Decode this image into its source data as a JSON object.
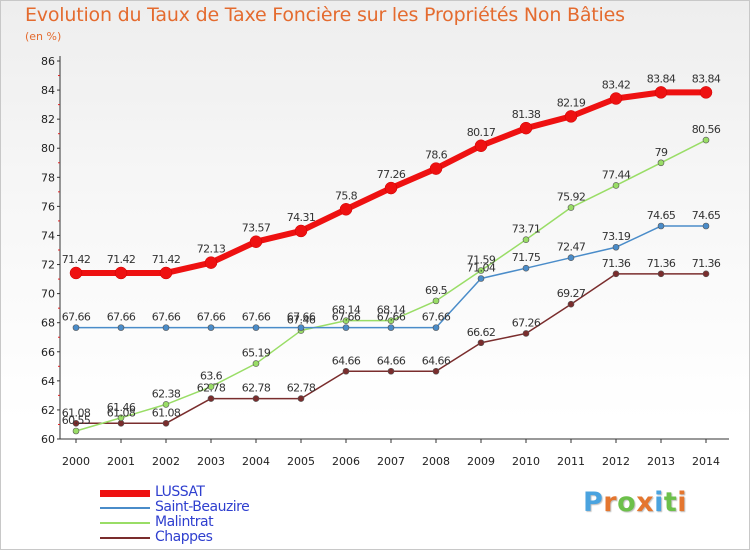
{
  "chart_data": {
    "type": "line",
    "title": "Evolution du Taux de Taxe Foncière sur les Propriétés Non Bâties",
    "ylabel": "(en %)",
    "xlabel": "",
    "x": [
      "2000",
      "2001",
      "2002",
      "2003",
      "2004",
      "2005",
      "2006",
      "2007",
      "2008",
      "2009",
      "2010",
      "2011",
      "2012",
      "2013",
      "2014"
    ],
    "ylim": [
      60,
      86
    ],
    "yticks": [
      "60",
      "62",
      "64",
      "66",
      "68",
      "70",
      "72",
      "74",
      "76",
      "78",
      "80",
      "82",
      "84",
      "86"
    ],
    "grid": false,
    "legend_position": "bottom-left",
    "series": [
      {
        "name": "LUSSAT",
        "color": "#ee1111",
        "values": [
          71.42,
          71.42,
          71.42,
          72.13,
          73.57,
          74.31,
          75.8,
          77.26,
          78.6,
          80.17,
          81.38,
          82.19,
          83.42,
          83.84,
          83.84
        ],
        "labels": [
          "71.42",
          "71.42",
          "71.42",
          "72.13",
          "73.57",
          "74.31",
          "75.8",
          "77.26",
          "78.6",
          "80.17",
          "81.38",
          "82.19",
          "83.42",
          "83.84",
          "83.84"
        ]
      },
      {
        "name": "Saint-Beauzire",
        "color": "#4a8cc9",
        "values": [
          67.66,
          67.66,
          67.66,
          67.66,
          67.66,
          67.66,
          67.66,
          67.66,
          67.66,
          71.04,
          71.75,
          72.47,
          73.19,
          74.65,
          74.65
        ],
        "labels": [
          "67.66",
          "67.66",
          "67.66",
          "67.66",
          "67.66",
          "67.66",
          "67.66",
          "67.66",
          "67.66",
          "71.04",
          "71.75",
          "72.47",
          "73.19",
          "74.65",
          "74.65"
        ]
      },
      {
        "name": "Malintrat",
        "color": "#99dd66",
        "values": [
          60.55,
          61.46,
          62.38,
          63.6,
          65.19,
          67.46,
          68.14,
          68.14,
          69.5,
          71.59,
          73.71,
          75.92,
          77.44,
          79,
          80.56
        ],
        "labels": [
          "60.55",
          "61.46",
          "62.38",
          "63.6",
          "65.19",
          "67.46",
          "68.14",
          "68.14",
          "69.5",
          "71.59",
          "73.71",
          "75.92",
          "77.44",
          "79",
          "80.56"
        ]
      },
      {
        "name": "Chappes",
        "color": "#7a2d2d",
        "values": [
          61.08,
          61.08,
          61.08,
          62.78,
          62.78,
          62.78,
          64.66,
          64.66,
          64.66,
          66.62,
          67.26,
          69.27,
          71.36,
          71.36,
          71.36
        ],
        "labels": [
          "61.08",
          "61.08",
          "61.08",
          "62.78",
          "62.78",
          "62.78",
          "64.66",
          "64.66",
          "64.66",
          "66.62",
          "67.26",
          "69.27",
          "71.36",
          "71.36",
          "71.36"
        ]
      }
    ]
  },
  "logo": {
    "letters": [
      "P",
      "r",
      "o",
      "x",
      "i",
      "t",
      "i"
    ],
    "colors": [
      "#4aa3df",
      "#e4762f",
      "#6cc04a",
      "#e4762f",
      "#4aa3df",
      "#6cc04a",
      "#e4762f"
    ]
  }
}
